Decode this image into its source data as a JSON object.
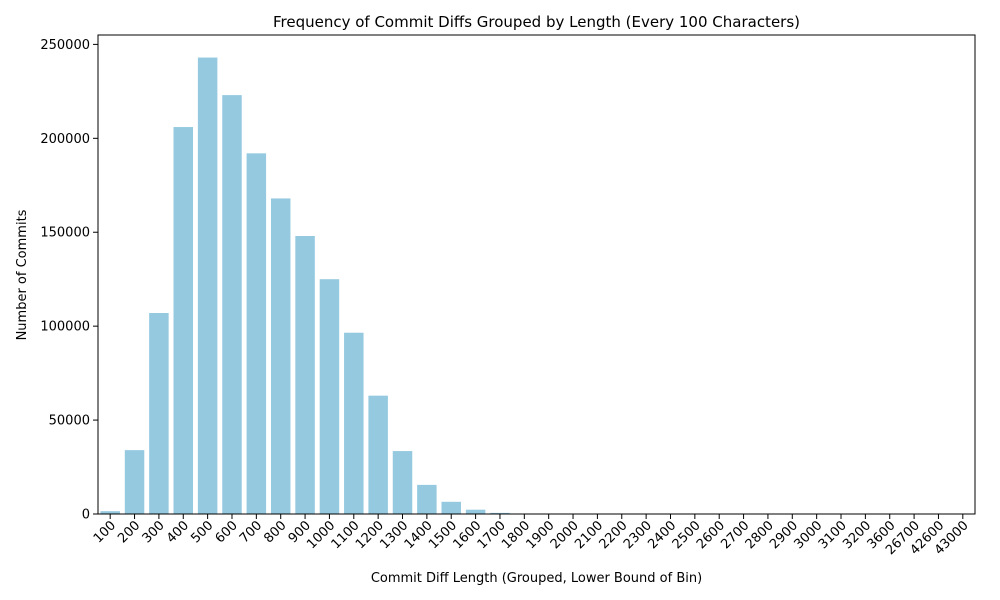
{
  "chart_data": {
    "type": "bar",
    "title": "Frequency of Commit Diffs Grouped by Length (Every 100 Characters)",
    "xlabel": "Commit Diff Length (Grouped, Lower Bound of Bin)",
    "ylabel": "Number of Commits",
    "ylim": [
      0,
      255000
    ],
    "yticks": [
      0,
      50000,
      100000,
      150000,
      200000,
      250000
    ],
    "bar_color": "#95c9e0",
    "grid": false,
    "categories": [
      "100",
      "200",
      "300",
      "400",
      "500",
      "600",
      "700",
      "800",
      "900",
      "1000",
      "1100",
      "1200",
      "1300",
      "1400",
      "1500",
      "1600",
      "1700",
      "1800",
      "1900",
      "2000",
      "2100",
      "2200",
      "2300",
      "2400",
      "2500",
      "2600",
      "2700",
      "2800",
      "2900",
      "3000",
      "3100",
      "3200",
      "3600",
      "26700",
      "42600",
      "43000"
    ],
    "values": [
      1500,
      34000,
      107000,
      206000,
      243000,
      223000,
      192000,
      168000,
      148000,
      125000,
      96500,
      63000,
      33500,
      15500,
      6500,
      2300,
      600,
      150,
      60,
      30,
      15,
      10,
      5,
      3,
      2,
      2,
      1,
      1,
      1,
      1,
      1,
      1,
      1,
      1,
      1,
      1
    ]
  }
}
